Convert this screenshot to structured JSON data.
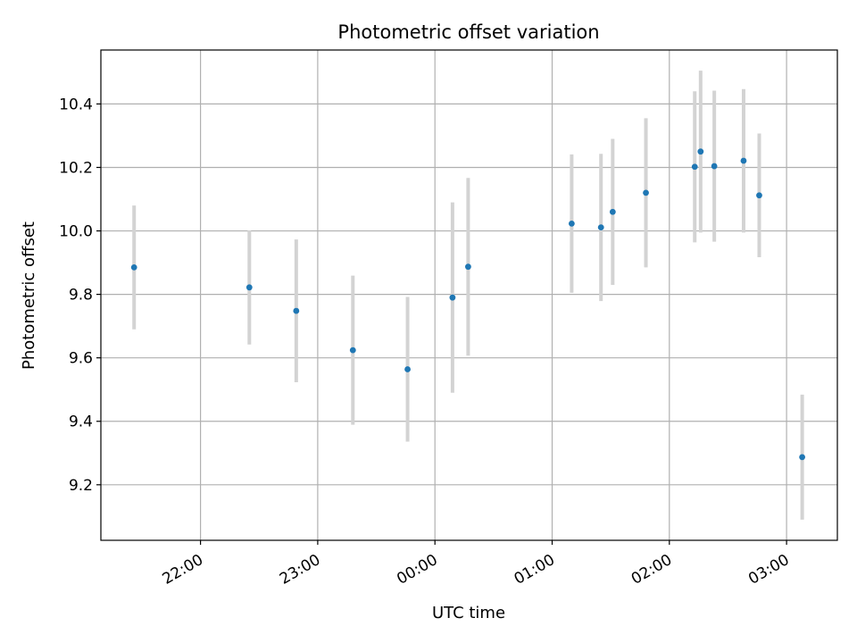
{
  "chart_data": {
    "type": "scatter",
    "title": "Photometric offset variation",
    "xlabel": "UTC time",
    "ylabel": "Photometric offset",
    "x_axis_kind": "time",
    "xlim": [
      "21:09",
      "03:26"
    ],
    "ylim": [
      9.025,
      10.57
    ],
    "x_ticks": [
      "22:00",
      "23:00",
      "00:00",
      "01:00",
      "02:00",
      "03:00"
    ],
    "y_ticks": [
      9.2,
      9.4,
      9.6,
      9.8,
      10.0,
      10.2,
      10.4
    ],
    "y_tick_labels": [
      "9.2",
      "9.4",
      "9.6",
      "9.8",
      "10.0",
      "10.2",
      "10.4"
    ],
    "grid": true,
    "legend": "none",
    "series": [
      {
        "marker_color": "#1f77b4",
        "errorbar_color": "#d3d3d3",
        "points": [
          {
            "time": "21:26",
            "y": 9.885,
            "err": 0.195
          },
          {
            "time": "22:25",
            "y": 9.822,
            "err": 0.18
          },
          {
            "time": "22:49",
            "y": 9.748,
            "err": 0.225
          },
          {
            "time": "23:18",
            "y": 9.624,
            "err": 0.235
          },
          {
            "time": "23:46",
            "y": 9.564,
            "err": 0.228
          },
          {
            "time": "00:09",
            "y": 9.79,
            "err": 0.3
          },
          {
            "time": "00:17",
            "y": 9.887,
            "err": 0.28
          },
          {
            "time": "01:10",
            "y": 10.023,
            "err": 0.218
          },
          {
            "time": "01:25",
            "y": 10.011,
            "err": 0.232
          },
          {
            "time": "01:31",
            "y": 10.06,
            "err": 0.23
          },
          {
            "time": "01:48",
            "y": 10.12,
            "err": 0.235
          },
          {
            "time": "02:13",
            "y": 10.202,
            "err": 0.238
          },
          {
            "time": "02:16",
            "y": 10.25,
            "err": 0.255
          },
          {
            "time": "02:23",
            "y": 10.204,
            "err": 0.238
          },
          {
            "time": "02:38",
            "y": 10.221,
            "err": 0.226
          },
          {
            "time": "02:46",
            "y": 10.112,
            "err": 0.195
          },
          {
            "time": "03:08",
            "y": 9.287,
            "err": 0.197
          }
        ]
      }
    ]
  }
}
